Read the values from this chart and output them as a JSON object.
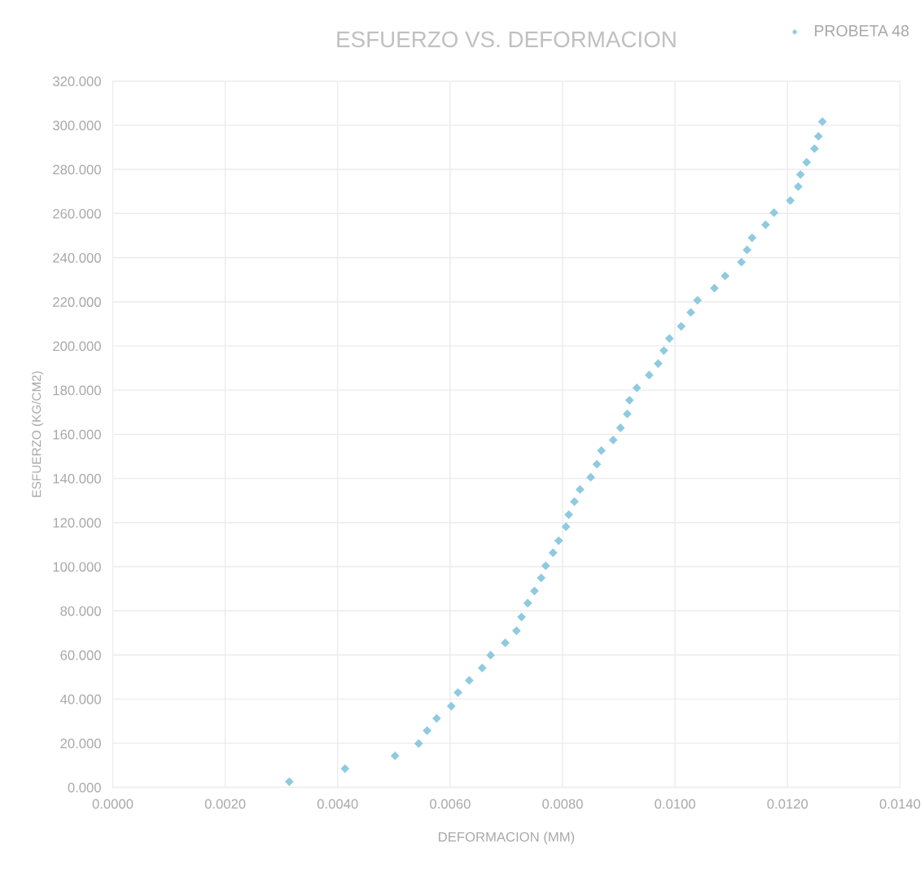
{
  "chart_data": {
    "type": "scatter",
    "title": "ESFUERZO VS. DEFORMACION",
    "xlabel": "DEFORMACION (MM)",
    "ylabel": "ESFUERZO (KG/CM2)",
    "xlim": [
      0,
      0.014
    ],
    "xticks": [
      {
        "value": 0,
        "label": "0.0000"
      },
      {
        "value": 0.002,
        "label": "0.0020"
      },
      {
        "value": 0.004,
        "label": "0.0040"
      },
      {
        "value": 0.006,
        "label": "0.0060"
      },
      {
        "value": 0.008,
        "label": "0.0080"
      },
      {
        "value": 0.01,
        "label": "0.0100"
      },
      {
        "value": 0.012,
        "label": "0.0120"
      },
      {
        "value": 0.014,
        "label": "0.0140"
      }
    ],
    "ylim": [
      0,
      320
    ],
    "yticks": [
      {
        "value": 0,
        "label": "0.000"
      },
      {
        "value": 20,
        "label": "20.000"
      },
      {
        "value": 40,
        "label": "40.000"
      },
      {
        "value": 60,
        "label": "60.000"
      },
      {
        "value": 80,
        "label": "80.000"
      },
      {
        "value": 100,
        "label": "100.000"
      },
      {
        "value": 120,
        "label": "120.000"
      },
      {
        "value": 140,
        "label": "140.000"
      },
      {
        "value": 160,
        "label": "160.000"
      },
      {
        "value": 180,
        "label": "180.000"
      },
      {
        "value": 200,
        "label": "200.000"
      },
      {
        "value": 220,
        "label": "220.000"
      },
      {
        "value": 240,
        "label": "240.000"
      },
      {
        "value": 260,
        "label": "260.000"
      },
      {
        "value": 280,
        "label": "280.000"
      },
      {
        "value": 300,
        "label": "300.000"
      },
      {
        "value": 320,
        "label": "320.000"
      }
    ],
    "grid": true,
    "legend": "top right",
    "marker": "diamond",
    "series": [
      {
        "name": "PROBETA 48",
        "color": "#8ecae0",
        "x": [
          0.00314,
          0.00413,
          0.00502,
          0.00544,
          0.00559,
          0.00576,
          0.00602,
          0.00614,
          0.00634,
          0.00657,
          0.00672,
          0.00698,
          0.00718,
          0.00727,
          0.00738,
          0.0075,
          0.00762,
          0.0077,
          0.00783,
          0.00793,
          0.00806,
          0.00811,
          0.00821,
          0.00831,
          0.0085,
          0.00861,
          0.00869,
          0.0089,
          0.00903,
          0.00915,
          0.00919,
          0.00932,
          0.00954,
          0.0097,
          0.0098,
          0.0099,
          0.01011,
          0.01028,
          0.0104,
          0.0107,
          0.01089,
          0.01118,
          0.01128,
          0.01137,
          0.01161,
          0.01176,
          0.01205,
          0.01219,
          0.01223,
          0.01234,
          0.01248,
          0.01255,
          0.01262
        ],
        "values": [
          2.6,
          8.5,
          14.3,
          19.9,
          25.7,
          31.3,
          36.8,
          43.0,
          48.5,
          54.1,
          59.9,
          65.5,
          71.0,
          77.2,
          83.5,
          89.0,
          94.9,
          100.4,
          106.3,
          111.8,
          118.1,
          123.6,
          129.5,
          135.0,
          140.5,
          146.4,
          152.6,
          157.4,
          162.9,
          169.2,
          175.4,
          181.0,
          186.8,
          192.0,
          197.9,
          203.4,
          208.9,
          215.2,
          220.7,
          226.2,
          231.7,
          238.0,
          243.5,
          249.0,
          254.9,
          260.4,
          265.9,
          272.2,
          277.7,
          283.2,
          289.4,
          295.0,
          301.6
        ]
      }
    ]
  }
}
